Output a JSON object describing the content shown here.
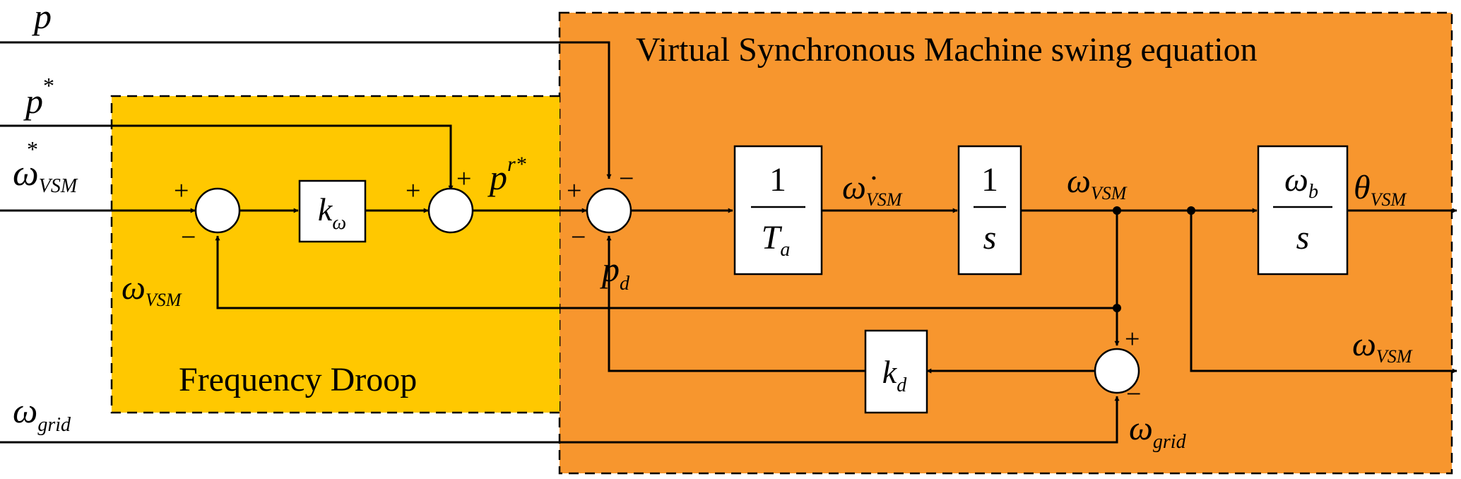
{
  "regions": {
    "vsm_label": "Virtual Synchronous Machine swing equation",
    "droop_label": "Frequency Droop",
    "vsm_color": "#F7962E",
    "droop_color": "#FFC800"
  },
  "inputs": {
    "p": "p",
    "p_star_base": "p",
    "p_star_sup": "*",
    "omega_star_base": "ω",
    "omega_star_sup": "*",
    "omega_star_sub": "VSM",
    "omega_grid_base": "ω",
    "omega_grid_sub": "grid"
  },
  "signals": {
    "omega_vsm_base": "ω",
    "omega_vsm_sub": "VSM",
    "p_r_star_base": "p",
    "p_r_star_sup": "r*",
    "p_d_base": "p",
    "p_d_sub": "d",
    "omega_dot_base": "ω̇",
    "omega_dot_sub": "VSM",
    "theta_base": "θ",
    "theta_sub": "VSM",
    "omega_grid_base": "ω",
    "omega_grid_sub": "grid"
  },
  "blocks": {
    "k_omega_base": "k",
    "k_omega_sub": "ω",
    "inertia_num": "1",
    "inertia_den_base": "T",
    "inertia_den_sub": "a",
    "integrator_num": "1",
    "integrator_den": "s",
    "omega_b_num_base": "ω",
    "omega_b_num_sub": "b",
    "omega_b_den": "s",
    "k_d_base": "k",
    "k_d_sub": "d"
  },
  "signs": {
    "plus": "+",
    "minus": "−"
  }
}
